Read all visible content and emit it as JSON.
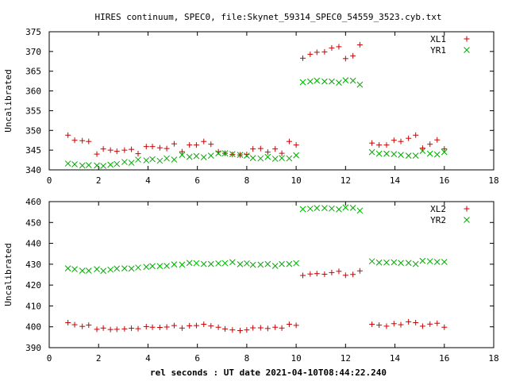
{
  "chart_data": [
    {
      "type": "scatter",
      "title": "HIRES continuum, SPEC0, file:Skynet_59314_SPEC0_54559_3523.cyb.txt",
      "xlabel": "",
      "ylabel": "Uncalibrated",
      "xlim": [
        0,
        18
      ],
      "ylim": [
        340,
        375
      ],
      "xticks": [
        "0",
        "2",
        "4",
        "6",
        "8",
        "10",
        "12",
        "14",
        "16",
        "18"
      ],
      "yticks": [
        "340",
        "345",
        "350",
        "355",
        "360",
        "365",
        "370",
        "375"
      ],
      "grid": false,
      "legend_position": "top-right",
      "series": [
        {
          "name": "XL1",
          "marker": "plus",
          "color": "#cc0000",
          "points": [
            [
              0.76,
              348.8
            ],
            [
              1.03,
              347.5
            ],
            [
              1.34,
              347.4
            ],
            [
              1.6,
              347.2
            ],
            [
              1.93,
              344.0
            ],
            [
              2.19,
              345.3
            ],
            [
              2.48,
              345.0
            ],
            [
              2.74,
              344.7
            ],
            [
              3.05,
              345.0
            ],
            [
              3.33,
              345.2
            ],
            [
              3.6,
              344.1
            ],
            [
              3.93,
              345.9
            ],
            [
              4.18,
              345.9
            ],
            [
              4.48,
              345.6
            ],
            [
              4.76,
              345.4
            ],
            [
              5.06,
              346.6
            ],
            [
              5.38,
              344.6
            ],
            [
              5.68,
              346.3
            ],
            [
              5.96,
              346.3
            ],
            [
              6.26,
              347.2
            ],
            [
              6.55,
              346.5
            ],
            [
              6.85,
              344.6
            ],
            [
              7.12,
              344.2
            ],
            [
              7.42,
              343.9
            ],
            [
              7.73,
              343.8
            ],
            [
              8.0,
              343.9
            ],
            [
              8.25,
              345.3
            ],
            [
              8.56,
              345.4
            ],
            [
              8.85,
              344.5
            ],
            [
              9.15,
              345.3
            ],
            [
              9.42,
              344.2
            ],
            [
              9.72,
              347.2
            ],
            [
              10.0,
              346.3
            ],
            [
              10.27,
              368.3
            ],
            [
              10.57,
              369.3
            ],
            [
              10.84,
              369.8
            ],
            [
              11.15,
              369.9
            ],
            [
              11.44,
              370.9
            ],
            [
              11.73,
              371.2
            ],
            [
              12.0,
              368.2
            ],
            [
              12.3,
              368.9
            ],
            [
              12.58,
              371.7
            ],
            [
              13.07,
              346.8
            ],
            [
              13.36,
              346.3
            ],
            [
              13.66,
              346.3
            ],
            [
              13.96,
              347.5
            ],
            [
              14.24,
              347.2
            ],
            [
              14.55,
              348.0
            ],
            [
              14.84,
              348.8
            ],
            [
              15.12,
              345.5
            ],
            [
              15.42,
              346.5
            ],
            [
              15.71,
              347.6
            ],
            [
              16.0,
              345.3
            ]
          ]
        },
        {
          "name": "YR1",
          "marker": "cross",
          "color": "#00aa00",
          "points": [
            [
              0.76,
              341.6
            ],
            [
              1.03,
              341.4
            ],
            [
              1.34,
              341.1
            ],
            [
              1.6,
              341.2
            ],
            [
              1.93,
              341.1
            ],
            [
              2.19,
              341.0
            ],
            [
              2.48,
              341.3
            ],
            [
              2.74,
              341.5
            ],
            [
              3.05,
              342.0
            ],
            [
              3.33,
              341.8
            ],
            [
              3.6,
              342.6
            ],
            [
              3.93,
              342.4
            ],
            [
              4.18,
              342.7
            ],
            [
              4.48,
              342.3
            ],
            [
              4.76,
              342.9
            ],
            [
              5.06,
              342.6
            ],
            [
              5.38,
              343.8
            ],
            [
              5.68,
              343.3
            ],
            [
              5.96,
              343.5
            ],
            [
              6.26,
              343.2
            ],
            [
              6.55,
              343.6
            ],
            [
              6.85,
              344.2
            ],
            [
              7.12,
              344.2
            ],
            [
              7.42,
              344.0
            ],
            [
              7.73,
              343.8
            ],
            [
              8.0,
              343.6
            ],
            [
              8.25,
              343.0
            ],
            [
              8.56,
              342.9
            ],
            [
              8.85,
              343.3
            ],
            [
              9.15,
              342.8
            ],
            [
              9.42,
              343.0
            ],
            [
              9.72,
              342.9
            ],
            [
              10.0,
              343.7
            ],
            [
              10.27,
              362.2
            ],
            [
              10.57,
              362.4
            ],
            [
              10.84,
              362.6
            ],
            [
              11.15,
              362.4
            ],
            [
              11.44,
              362.4
            ],
            [
              11.73,
              362.1
            ],
            [
              12.0,
              362.7
            ],
            [
              12.3,
              362.6
            ],
            [
              12.58,
              361.6
            ],
            [
              13.07,
              344.5
            ],
            [
              13.36,
              344.1
            ],
            [
              13.66,
              344.1
            ],
            [
              13.96,
              344.0
            ],
            [
              14.24,
              343.8
            ],
            [
              14.55,
              343.6
            ],
            [
              14.84,
              343.6
            ],
            [
              15.12,
              344.8
            ],
            [
              15.42,
              344.1
            ],
            [
              15.71,
              343.9
            ],
            [
              16.0,
              344.5
            ]
          ]
        }
      ]
    },
    {
      "type": "scatter",
      "xlabel": "rel seconds : UT date 2021-04-10T08:44:22.240",
      "ylabel": "Uncalibrated",
      "xlim": [
        0,
        18
      ],
      "ylim": [
        390,
        460
      ],
      "xticks": [
        "0",
        "2",
        "4",
        "6",
        "8",
        "10",
        "12",
        "14",
        "16",
        "18"
      ],
      "yticks": [
        "390",
        "400",
        "410",
        "420",
        "430",
        "440",
        "450",
        "460"
      ],
      "grid": false,
      "legend_position": "top-right",
      "series": [
        {
          "name": "XL2",
          "marker": "plus",
          "color": "#cc0000",
          "points": [
            [
              0.76,
              402.0
            ],
            [
              1.03,
              401.0
            ],
            [
              1.34,
              400.2
            ],
            [
              1.6,
              400.8
            ],
            [
              1.93,
              398.8
            ],
            [
              2.19,
              399.4
            ],
            [
              2.48,
              398.7
            ],
            [
              2.74,
              398.8
            ],
            [
              3.05,
              399.0
            ],
            [
              3.33,
              399.3
            ],
            [
              3.6,
              399.1
            ],
            [
              3.93,
              400.1
            ],
            [
              4.18,
              399.8
            ],
            [
              4.48,
              399.7
            ],
            [
              4.76,
              399.9
            ],
            [
              5.06,
              400.6
            ],
            [
              5.38,
              399.4
            ],
            [
              5.68,
              400.5
            ],
            [
              5.96,
              400.6
            ],
            [
              6.26,
              401.2
            ],
            [
              6.55,
              400.4
            ],
            [
              6.85,
              399.8
            ],
            [
              7.12,
              399.0
            ],
            [
              7.42,
              398.5
            ],
            [
              7.73,
              398.2
            ],
            [
              8.0,
              398.5
            ],
            [
              8.25,
              399.5
            ],
            [
              8.56,
              399.5
            ],
            [
              8.85,
              399.2
            ],
            [
              9.15,
              399.8
            ],
            [
              9.42,
              399.4
            ],
            [
              9.72,
              401.2
            ],
            [
              10.0,
              400.7
            ],
            [
              10.27,
              424.6
            ],
            [
              10.57,
              425.3
            ],
            [
              10.84,
              425.5
            ],
            [
              11.15,
              425.2
            ],
            [
              11.44,
              426.0
            ],
            [
              11.73,
              426.6
            ],
            [
              12.0,
              424.7
            ],
            [
              12.3,
              425.1
            ],
            [
              12.58,
              426.8
            ],
            [
              13.07,
              401.2
            ],
            [
              13.36,
              400.8
            ],
            [
              13.66,
              400.3
            ],
            [
              13.96,
              401.5
            ],
            [
              14.24,
              401.0
            ],
            [
              14.55,
              402.4
            ],
            [
              14.84,
              402.0
            ],
            [
              15.12,
              400.3
            ],
            [
              15.42,
              401.3
            ],
            [
              15.71,
              401.7
            ],
            [
              16.0,
              399.8
            ]
          ]
        },
        {
          "name": "YR2",
          "marker": "cross",
          "color": "#00aa00",
          "points": [
            [
              0.76,
              428.0
            ],
            [
              1.03,
              427.6
            ],
            [
              1.34,
              426.9
            ],
            [
              1.6,
              426.9
            ],
            [
              1.93,
              427.6
            ],
            [
              2.19,
              426.8
            ],
            [
              2.48,
              427.4
            ],
            [
              2.74,
              427.9
            ],
            [
              3.05,
              428.0
            ],
            [
              3.33,
              427.9
            ],
            [
              3.6,
              428.4
            ],
            [
              3.93,
              428.7
            ],
            [
              4.18,
              429.1
            ],
            [
              4.48,
              429.1
            ],
            [
              4.76,
              429.2
            ],
            [
              5.06,
              429.9
            ],
            [
              5.38,
              429.8
            ],
            [
              5.68,
              430.6
            ],
            [
              5.96,
              430.5
            ],
            [
              6.26,
              430.1
            ],
            [
              6.55,
              430.1
            ],
            [
              6.85,
              430.4
            ],
            [
              7.12,
              430.5
            ],
            [
              7.42,
              431.0
            ],
            [
              7.73,
              430.0
            ],
            [
              8.0,
              430.4
            ],
            [
              8.25,
              429.7
            ],
            [
              8.56,
              429.8
            ],
            [
              8.85,
              430.1
            ],
            [
              9.15,
              429.2
            ],
            [
              9.42,
              430.1
            ],
            [
              9.72,
              430.1
            ],
            [
              10.0,
              430.5
            ],
            [
              10.27,
              456.4
            ],
            [
              10.57,
              456.6
            ],
            [
              10.84,
              456.9
            ],
            [
              11.15,
              456.9
            ],
            [
              11.44,
              456.7
            ],
            [
              11.73,
              456.3
            ],
            [
              12.0,
              457.2
            ],
            [
              12.3,
              457.0
            ],
            [
              12.58,
              455.7
            ],
            [
              13.07,
              431.4
            ],
            [
              13.36,
              430.8
            ],
            [
              13.66,
              430.8
            ],
            [
              13.96,
              430.9
            ],
            [
              14.24,
              430.6
            ],
            [
              14.55,
              430.6
            ],
            [
              14.84,
              430.1
            ],
            [
              15.12,
              431.6
            ],
            [
              15.42,
              431.4
            ],
            [
              15.71,
              431.1
            ],
            [
              16.0,
              431.1
            ]
          ]
        }
      ]
    }
  ]
}
